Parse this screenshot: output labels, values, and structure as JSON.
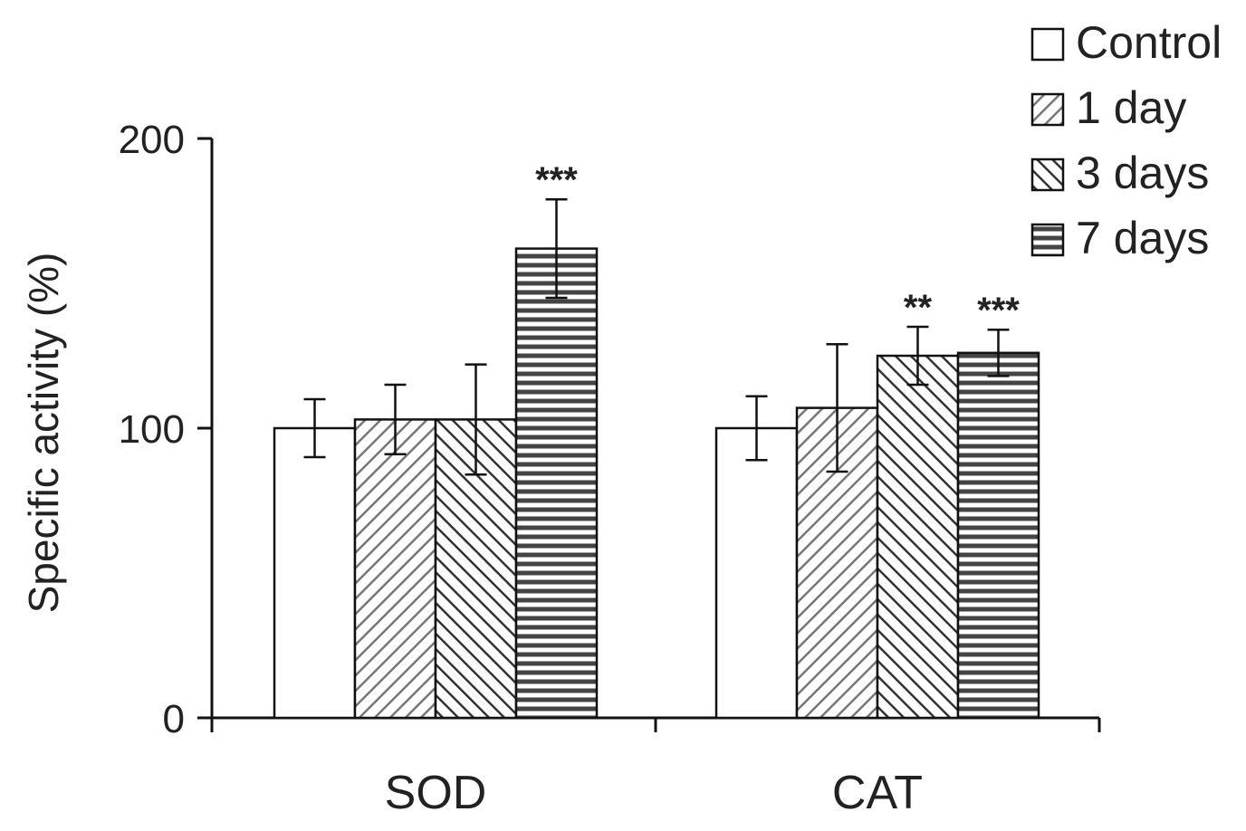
{
  "chart_data": {
    "type": "bar",
    "title": "",
    "xlabel": "",
    "ylabel": "Specific activity (%)",
    "ylim": [
      0,
      200
    ],
    "yticks": [
      0,
      100,
      200
    ],
    "categories": [
      "SOD",
      "CAT"
    ],
    "legend_position": "top-right",
    "series": [
      {
        "name": "Control",
        "pattern": "none",
        "values": [
          100,
          100
        ],
        "errors": [
          10,
          11
        ],
        "annotations": [
          "",
          ""
        ]
      },
      {
        "name": "1 day",
        "pattern": "diagonal-up",
        "values": [
          103,
          107
        ],
        "errors": [
          12,
          22
        ],
        "annotations": [
          "",
          ""
        ]
      },
      {
        "name": "3 days",
        "pattern": "diagonal-down",
        "values": [
          103,
          125
        ],
        "errors": [
          19,
          10
        ],
        "annotations": [
          "",
          "**"
        ]
      },
      {
        "name": "7 days",
        "pattern": "horizontal",
        "values": [
          162,
          126
        ],
        "errors": [
          17,
          8
        ],
        "annotations": [
          "***",
          "***"
        ]
      }
    ]
  },
  "colors": {
    "bar_fill": "#ffffff",
    "hatch": "#555555",
    "hatch_light": "#999999",
    "stroke": "#111111"
  }
}
